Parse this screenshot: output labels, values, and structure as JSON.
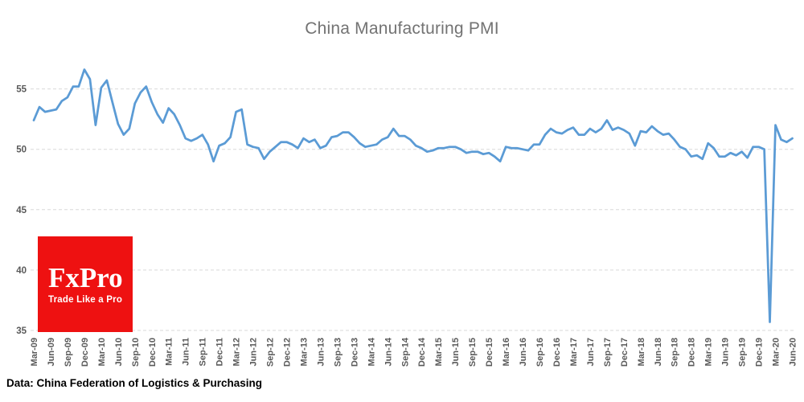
{
  "title": "China Manufacturing PMI",
  "footer": {
    "source_note": "Data: China Federation of Logistics & Purchasing"
  },
  "logo": {
    "brand": "FxPro",
    "tagline": "Trade Like a Pro",
    "bg_color": "#EE1111",
    "text_color": "#FFFFFF"
  },
  "colors": {
    "line": "#5B9BD5",
    "grid": "#D9D9D9",
    "title_text": "#737373",
    "tick_text": "#595959"
  },
  "chart_data": {
    "type": "line",
    "title": "China Manufacturing PMI",
    "series_name": "China Manufacturing PMI",
    "x_start": "Mar-09",
    "x_end": "Jun-20",
    "x_frequency": "monthly",
    "x_tick_labels": [
      "Mar-09",
      "Jun-09",
      "Sep-09",
      "Dec-09",
      "Mar-10",
      "Jun-10",
      "Sep-10",
      "Dec-10",
      "Mar-11",
      "Jun-11",
      "Sep-11",
      "Dec-11",
      "Mar-12",
      "Jun-12",
      "Sep-12",
      "Dec-12",
      "Mar-13",
      "Jun-13",
      "Sep-13",
      "Dec-13",
      "Mar-14",
      "Jun-14",
      "Sep-14",
      "Dec-14",
      "Mar-15",
      "Jun-15",
      "Sep-15",
      "Dec-15",
      "Mar-16",
      "Jun-16",
      "Sep-16",
      "Dec-16",
      "Mar-17",
      "Jun-17",
      "Sep-17",
      "Dec-17",
      "Mar-18",
      "Jun-18",
      "Sep-18",
      "Dec-18",
      "Mar-19",
      "Jun-19",
      "Sep-19",
      "Dec-19",
      "Mar-20",
      "Jun-20"
    ],
    "x_tick_every_n_points": 3,
    "values": [
      52.4,
      53.5,
      53.1,
      53.2,
      53.3,
      54.0,
      54.3,
      55.2,
      55.2,
      56.6,
      55.8,
      52.0,
      55.1,
      55.7,
      53.9,
      52.1,
      51.2,
      51.7,
      53.8,
      54.7,
      55.2,
      53.9,
      52.9,
      52.2,
      53.4,
      52.9,
      52.0,
      50.9,
      50.7,
      50.9,
      51.2,
      50.4,
      49.0,
      50.3,
      50.5,
      51.0,
      53.1,
      53.3,
      50.4,
      50.2,
      50.1,
      49.2,
      49.8,
      50.2,
      50.6,
      50.6,
      50.4,
      50.1,
      50.9,
      50.6,
      50.8,
      50.1,
      50.3,
      51.0,
      51.1,
      51.4,
      51.4,
      51.0,
      50.5,
      50.2,
      50.3,
      50.4,
      50.8,
      51.0,
      51.7,
      51.1,
      51.1,
      50.8,
      50.3,
      50.1,
      49.8,
      49.9,
      50.1,
      50.1,
      50.2,
      50.2,
      50.0,
      49.7,
      49.8,
      49.8,
      49.6,
      49.7,
      49.4,
      49.0,
      50.2,
      50.1,
      50.1,
      50.0,
      49.9,
      50.4,
      50.4,
      51.2,
      51.7,
      51.4,
      51.3,
      51.6,
      51.8,
      51.2,
      51.2,
      51.7,
      51.4,
      51.7,
      52.4,
      51.6,
      51.8,
      51.6,
      51.3,
      50.3,
      51.5,
      51.4,
      51.9,
      51.5,
      51.2,
      51.3,
      50.8,
      50.2,
      50.0,
      49.4,
      49.5,
      49.2,
      50.5,
      50.1,
      49.4,
      49.4,
      49.7,
      49.5,
      49.8,
      49.3,
      50.2,
      50.2,
      50.0,
      35.7,
      52.0,
      50.8,
      50.6,
      50.9
    ],
    "y_ticks": [
      35,
      40,
      45,
      50,
      55
    ],
    "ylim": [
      35,
      57.5
    ],
    "grid": "horizontal-dashed",
    "legend": "none"
  }
}
